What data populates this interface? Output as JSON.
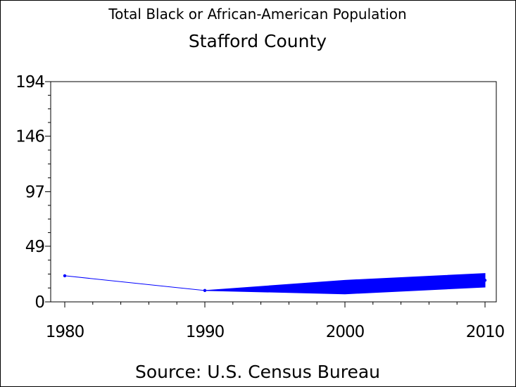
{
  "chart_data": {
    "type": "line",
    "title": "Total Black or African-American Population",
    "subtitle": "Stafford County",
    "footnote": "Source: U.S. Census Bureau",
    "xlabel": "",
    "ylabel": "",
    "x": [
      1980,
      1990,
      2000,
      2010
    ],
    "x_ticks": [
      "1980",
      "1990",
      "2000",
      "2010"
    ],
    "y_ticks": [
      "0",
      "49",
      "97",
      "146",
      "194"
    ],
    "ylim": [
      0,
      194
    ],
    "xlim": [
      1980,
      2010
    ],
    "series": [
      {
        "values": [
          23,
          10,
          14,
          19
        ]
      }
    ],
    "range_band": {
      "x": [
        1990,
        2000,
        2010
      ],
      "low": [
        10,
        7,
        13
      ],
      "high": [
        10,
        19,
        25
      ]
    },
    "color": "#0000ff",
    "grid": false,
    "legend": "none"
  }
}
